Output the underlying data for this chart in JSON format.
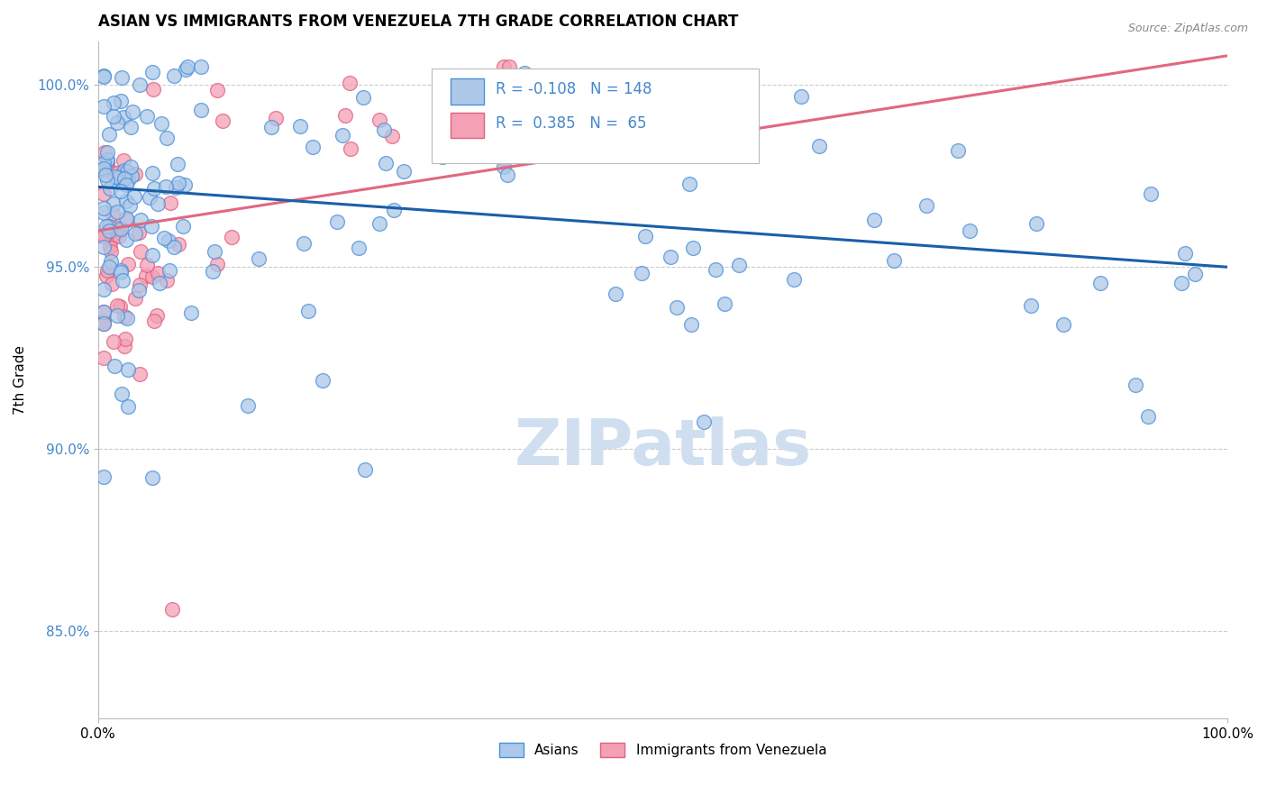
{
  "title": "ASIAN VS IMMIGRANTS FROM VENEZUELA 7TH GRADE CORRELATION CHART",
  "source_text": "Source: ZipAtlas.com",
  "ylabel": "7th Grade",
  "xlim": [
    0.0,
    1.0
  ],
  "ylim": [
    0.826,
    1.012
  ],
  "yticks": [
    0.85,
    0.9,
    0.95,
    1.0
  ],
  "ytick_labels": [
    "85.0%",
    "90.0%",
    "95.0%",
    "100.0%"
  ],
  "xtick_labels": [
    "0.0%",
    "100.0%"
  ],
  "legend_r_asian": "-0.108",
  "legend_n_asian": "148",
  "legend_r_venez": "0.385",
  "legend_n_venez": "65",
  "color_asian_fill": "#adc8e8",
  "color_asian_edge": "#4a90d9",
  "color_venez_fill": "#f4a0b5",
  "color_venez_edge": "#e06080",
  "color_asian_line": "#1a5fa8",
  "color_venez_line": "#e06880",
  "color_ytick": "#4488cc",
  "watermark_color": "#d0dff0",
  "watermark_text": "ZIPatlas",
  "asian_line_start": 0.972,
  "asian_line_end": 0.95,
  "venez_line_start": 0.96,
  "venez_line_end": 1.008
}
